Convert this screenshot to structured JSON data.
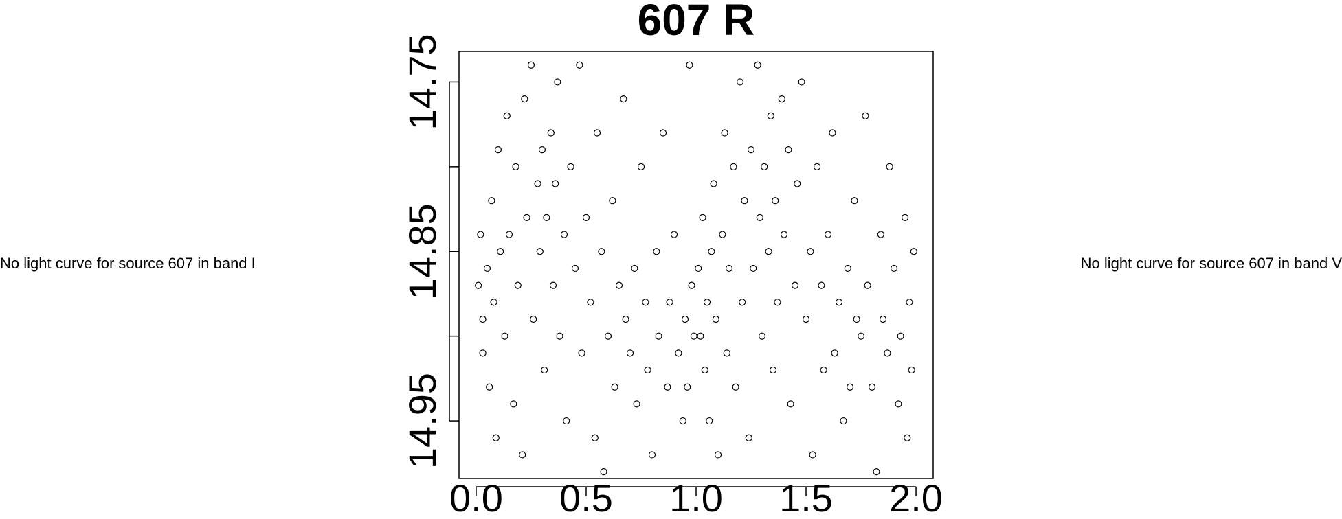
{
  "chart_data": {
    "type": "scatter",
    "title": "607 R",
    "color": "#000000",
    "annotations": [
      "No light curve for source 607 in band I",
      "No light curve for source 607 in band V"
    ],
    "xlim": [
      -0.078,
      2.078
    ],
    "ylim": [
      14.732,
      14.984
    ],
    "y_reversed": true,
    "xticks": [
      {
        "value": 0,
        "label": "0.0"
      },
      0.5,
      {
        "value": 1,
        "label": "1.0"
      },
      1.5,
      {
        "value": 2,
        "label": "2.0"
      }
    ],
    "yticks": [
      14.75,
      {
        "value": 14.8,
        "label": null
      },
      14.85,
      {
        "value": 14.9,
        "label": null
      },
      14.95
    ],
    "x": [
      0.01,
      0.02,
      0.03,
      0.03,
      0.05,
      0.06,
      0.07,
      0.08,
      0.09,
      0.1,
      0.11,
      0.13,
      0.14,
      0.15,
      0.17,
      0.18,
      0.19,
      0.21,
      0.22,
      0.23,
      0.25,
      0.26,
      0.28,
      0.29,
      0.3,
      0.31,
      0.32,
      0.34,
      0.35,
      0.36,
      0.37,
      0.38,
      0.4,
      0.41,
      0.43,
      0.45,
      0.47,
      0.48,
      0.5,
      0.52,
      0.54,
      0.55,
      0.57,
      0.58,
      0.6,
      0.62,
      0.63,
      0.65,
      0.67,
      0.68,
      0.7,
      0.72,
      0.73,
      0.75,
      0.77,
      0.78,
      0.8,
      0.82,
      0.83,
      0.85,
      0.87,
      0.88,
      0.9,
      0.92,
      0.94,
      0.95,
      0.96,
      0.97,
      0.98,
      0.99,
      1.01,
      1.02,
      1.03,
      1.04,
      1.05,
      1.06,
      1.07,
      1.08,
      1.09,
      1.1,
      1.12,
      1.13,
      1.14,
      1.15,
      1.17,
      1.18,
      1.2,
      1.21,
      1.22,
      1.24,
      1.25,
      1.26,
      1.28,
      1.29,
      1.3,
      1.31,
      1.33,
      1.34,
      1.35,
      1.36,
      1.37,
      1.39,
      1.4,
      1.42,
      1.43,
      1.45,
      1.46,
      1.48,
      1.5,
      1.52,
      1.53,
      1.55,
      1.57,
      1.58,
      1.6,
      1.62,
      1.63,
      1.65,
      1.67,
      1.69,
      1.7,
      1.72,
      1.73,
      1.75,
      1.77,
      1.78,
      1.8,
      1.82,
      1.84,
      1.85,
      1.87,
      1.88,
      1.9,
      1.92,
      1.93,
      1.95,
      1.96,
      1.97,
      1.98,
      1.99
    ],
    "values": [
      14.87,
      14.84,
      14.89,
      14.91,
      14.86,
      14.93,
      14.82,
      14.88,
      14.96,
      14.79,
      14.85,
      14.9,
      14.77,
      14.84,
      14.94,
      14.8,
      14.87,
      14.97,
      14.76,
      14.83,
      14.74,
      14.89,
      14.81,
      14.85,
      14.79,
      14.92,
      14.83,
      14.78,
      14.87,
      14.81,
      14.75,
      14.9,
      14.84,
      14.95,
      14.8,
      14.86,
      14.74,
      14.91,
      14.83,
      14.88,
      14.96,
      14.78,
      14.85,
      14.98,
      14.9,
      14.82,
      14.93,
      14.87,
      14.76,
      14.89,
      14.91,
      14.86,
      14.94,
      14.8,
      14.88,
      14.92,
      14.97,
      14.85,
      14.9,
      14.78,
      14.93,
      14.88,
      14.84,
      14.91,
      14.95,
      14.89,
      14.93,
      14.74,
      14.87,
      14.9,
      14.86,
      14.9,
      14.83,
      14.92,
      14.88,
      14.95,
      14.85,
      14.81,
      14.89,
      14.97,
      14.84,
      14.78,
      14.91,
      14.86,
      14.8,
      14.93,
      14.75,
      14.88,
      14.82,
      14.96,
      14.79,
      14.86,
      14.74,
      14.83,
      14.9,
      14.8,
      14.85,
      14.77,
      14.92,
      14.82,
      14.88,
      14.76,
      14.84,
      14.79,
      14.94,
      14.87,
      14.81,
      14.75,
      14.89,
      14.85,
      14.97,
      14.8,
      14.87,
      14.92,
      14.84,
      14.78,
      14.91,
      14.88,
      14.95,
      14.86,
      14.93,
      14.82,
      14.89,
      14.9,
      14.77,
      14.87,
      14.93,
      14.98,
      14.84,
      14.89,
      14.91,
      14.8,
      14.86,
      14.94,
      14.9,
      14.83,
      14.96,
      14.88,
      14.92,
      14.85
    ]
  }
}
